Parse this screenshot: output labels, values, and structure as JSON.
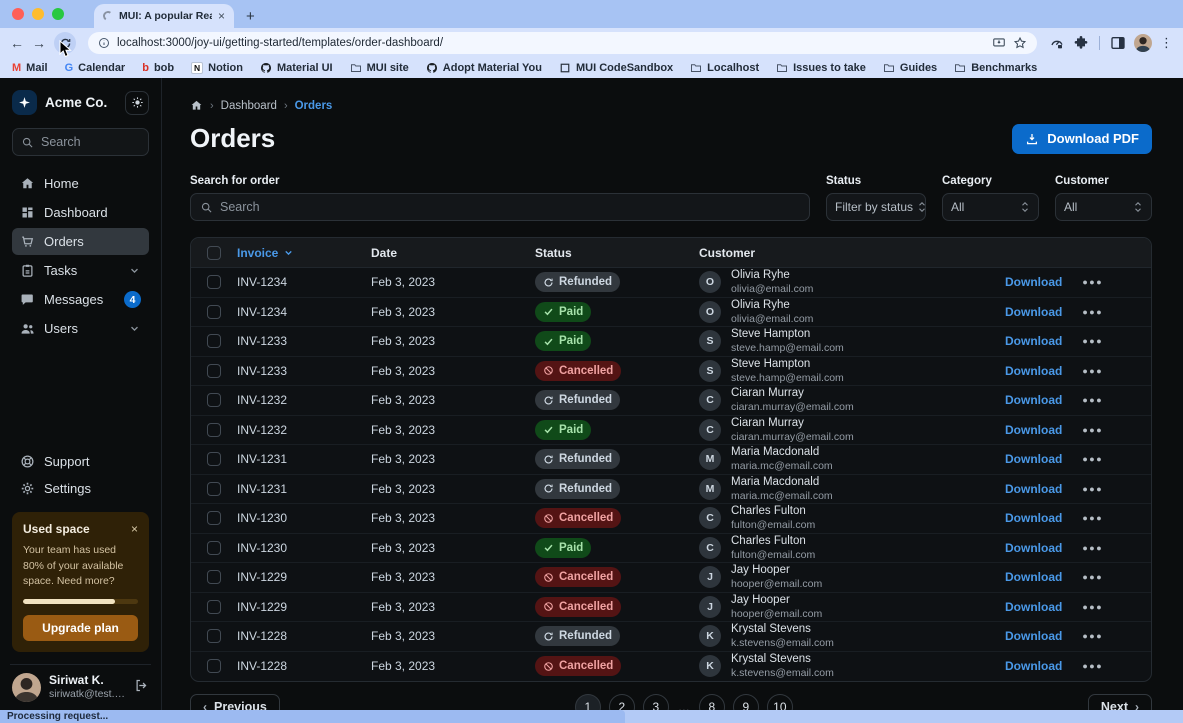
{
  "browser": {
    "tab_title": "MUI: A popular React UI fram",
    "url": "localhost:3000/joy-ui/getting-started/templates/order-dashboard/",
    "status_text": "Processing request...",
    "bookmarks": [
      {
        "label": "Mail",
        "icon": "gmail"
      },
      {
        "label": "Calendar",
        "icon": "gcal"
      },
      {
        "label": "bob",
        "icon": "bob"
      },
      {
        "label": "Notion",
        "icon": "notion"
      },
      {
        "label": "Material UI",
        "icon": "github"
      },
      {
        "label": "MUI site",
        "icon": "folder"
      },
      {
        "label": "Adopt Material You",
        "icon": "github"
      },
      {
        "label": "MUI CodeSandbox",
        "icon": "square"
      },
      {
        "label": "Localhost",
        "icon": "folder"
      },
      {
        "label": "Issues to take",
        "icon": "folder"
      },
      {
        "label": "Guides",
        "icon": "folder"
      },
      {
        "label": "Benchmarks",
        "icon": "folder"
      }
    ]
  },
  "sidebar": {
    "org": "Acme Co.",
    "search_placeholder": "Search",
    "nav": [
      {
        "label": "Home",
        "icon": "home",
        "selected": false
      },
      {
        "label": "Dashboard",
        "icon": "dashboard",
        "selected": false
      },
      {
        "label": "Orders",
        "icon": "cart",
        "selected": true
      },
      {
        "label": "Tasks",
        "icon": "tasks",
        "selected": false,
        "chevron": true
      },
      {
        "label": "Messages",
        "icon": "messages",
        "selected": false,
        "badge": "4"
      },
      {
        "label": "Users",
        "icon": "users",
        "selected": false,
        "chevron": true
      }
    ],
    "secondary": [
      {
        "label": "Support",
        "icon": "support"
      },
      {
        "label": "Settings",
        "icon": "settings"
      }
    ],
    "usage_card": {
      "title": "Used space",
      "body": "Your team has used 80% of your available space. Need more?",
      "progress_percent": 80,
      "cta": "Upgrade plan"
    },
    "user": {
      "name": "Siriwat K.",
      "email": "siriwatk@test.com"
    }
  },
  "main": {
    "breadcrumb": [
      "Dashboard",
      "Orders"
    ],
    "title": "Orders",
    "download_pdf": "Download PDF",
    "filters": {
      "search_label": "Search for order",
      "search_placeholder": "Search",
      "selects": [
        {
          "label": "Status",
          "value": "Filter by status"
        },
        {
          "label": "Category",
          "value": "All"
        },
        {
          "label": "Customer",
          "value": "All"
        }
      ]
    },
    "table": {
      "columns": [
        "Invoice",
        "Date",
        "Status",
        "Customer"
      ],
      "download_label": "Download",
      "rows": [
        {
          "invoice": "INV-1234",
          "date": "Feb 3, 2023",
          "status": "Refunded",
          "initial": "O",
          "name": "Olivia Ryhe",
          "email": "olivia@email.com"
        },
        {
          "invoice": "INV-1234",
          "date": "Feb 3, 2023",
          "status": "Paid",
          "initial": "O",
          "name": "Olivia Ryhe",
          "email": "olivia@email.com"
        },
        {
          "invoice": "INV-1233",
          "date": "Feb 3, 2023",
          "status": "Paid",
          "initial": "S",
          "name": "Steve Hampton",
          "email": "steve.hamp@email.com"
        },
        {
          "invoice": "INV-1233",
          "date": "Feb 3, 2023",
          "status": "Cancelled",
          "initial": "S",
          "name": "Steve Hampton",
          "email": "steve.hamp@email.com"
        },
        {
          "invoice": "INV-1232",
          "date": "Feb 3, 2023",
          "status": "Refunded",
          "initial": "C",
          "name": "Ciaran Murray",
          "email": "ciaran.murray@email.com"
        },
        {
          "invoice": "INV-1232",
          "date": "Feb 3, 2023",
          "status": "Paid",
          "initial": "C",
          "name": "Ciaran Murray",
          "email": "ciaran.murray@email.com"
        },
        {
          "invoice": "INV-1231",
          "date": "Feb 3, 2023",
          "status": "Refunded",
          "initial": "M",
          "name": "Maria Macdonald",
          "email": "maria.mc@email.com"
        },
        {
          "invoice": "INV-1231",
          "date": "Feb 3, 2023",
          "status": "Refunded",
          "initial": "M",
          "name": "Maria Macdonald",
          "email": "maria.mc@email.com"
        },
        {
          "invoice": "INV-1230",
          "date": "Feb 3, 2023",
          "status": "Cancelled",
          "initial": "C",
          "name": "Charles Fulton",
          "email": "fulton@email.com"
        },
        {
          "invoice": "INV-1230",
          "date": "Feb 3, 2023",
          "status": "Paid",
          "initial": "C",
          "name": "Charles Fulton",
          "email": "fulton@email.com"
        },
        {
          "invoice": "INV-1229",
          "date": "Feb 3, 2023",
          "status": "Cancelled",
          "initial": "J",
          "name": "Jay Hooper",
          "email": "hooper@email.com"
        },
        {
          "invoice": "INV-1229",
          "date": "Feb 3, 2023",
          "status": "Cancelled",
          "initial": "J",
          "name": "Jay Hooper",
          "email": "hooper@email.com"
        },
        {
          "invoice": "INV-1228",
          "date": "Feb 3, 2023",
          "status": "Refunded",
          "initial": "K",
          "name": "Krystal Stevens",
          "email": "k.stevens@email.com"
        },
        {
          "invoice": "INV-1228",
          "date": "Feb 3, 2023",
          "status": "Cancelled",
          "initial": "K",
          "name": "Krystal Stevens",
          "email": "k.stevens@email.com"
        }
      ]
    },
    "pagination": {
      "prev": "Previous",
      "pages": [
        "1",
        "2",
        "3",
        "…",
        "8",
        "9",
        "10"
      ],
      "next": "Next",
      "current": "1"
    }
  },
  "colors": {
    "accent_blue": "#0b6bcb",
    "link_blue": "#4a99e8",
    "paid_bg": "#104a19",
    "refunded_bg": "#32383e",
    "cancelled_bg": "#541414",
    "warning_card_bg": "#2f2107",
    "warning_button": "#9a5b13",
    "chrome_blue": "#d6e2fc"
  }
}
